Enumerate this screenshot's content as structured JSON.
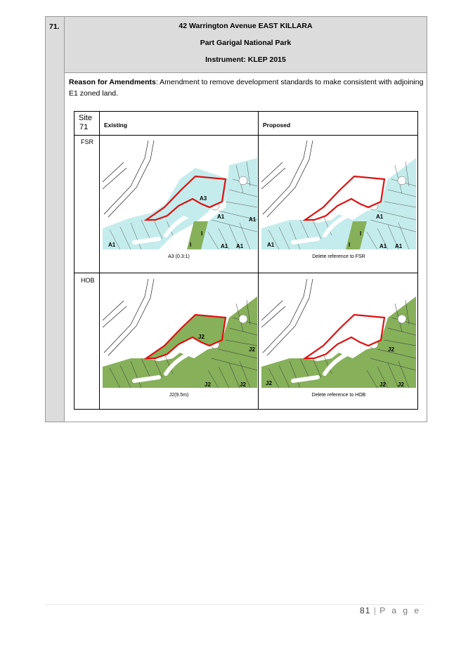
{
  "item": {
    "number": "71.",
    "title": "42 Warrington Avenue EAST KILLARA",
    "subtitle": "Part Garigal National Park",
    "instrument": "Instrument: KLEP 2015"
  },
  "reason": {
    "label": "Reason for Amendments",
    "text": ": Amendment to remove development standards to make consistent with adjoining E1 zoned land."
  },
  "table": {
    "site_line1": "Site",
    "site_line2": "71",
    "col_existing": "Existing",
    "col_proposed": "Proposed",
    "rows": [
      {
        "label": "FSR",
        "existing_caption": "A3 (0.3:1)",
        "proposed_caption": "Delete reference to FSR"
      },
      {
        "label": "HOB",
        "existing_caption": "J2(9.5m)",
        "proposed_caption": "Delete reference to HOB"
      }
    ]
  },
  "map_labels": {
    "fsr_existing": [
      "A3",
      "A1",
      "A1",
      "A1",
      "A1",
      "A1",
      "I",
      "I"
    ],
    "fsr_proposed": [
      "A1",
      "A1",
      "A1",
      "A1",
      "I",
      "I"
    ],
    "hob_existing": [
      "J2",
      "J2",
      "J2",
      "J2"
    ],
    "hob_proposed": [
      "J2",
      "J2",
      "J2",
      "J2"
    ]
  },
  "colors": {
    "fsr_fill": "#c4ecec",
    "hob_fill": "#86b05a",
    "site_boundary": "#dd1111",
    "header_grey": "#dcdcdc"
  },
  "footer": {
    "page_number": "81",
    "separator": "|",
    "page_word": "P a g e"
  }
}
